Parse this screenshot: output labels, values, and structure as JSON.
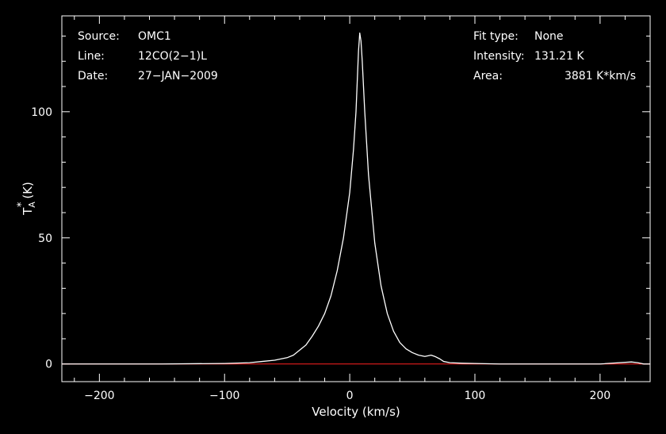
{
  "chart_data": {
    "type": "line",
    "title": "",
    "xlabel": "Velocity (km/s)",
    "ylabel": "T*A (K)",
    "ylabel_parts": {
      "main": "T",
      "sup": "*",
      "sub": "A",
      "unit": "(K)"
    },
    "xlim": [
      -230,
      240
    ],
    "ylim": [
      -7,
      138
    ],
    "x_ticks": [
      -200,
      -100,
      0,
      100,
      200
    ],
    "x_tick_labels": [
      "−200",
      "−100",
      "0",
      "100",
      "200"
    ],
    "y_ticks": [
      0,
      50,
      100
    ],
    "y_tick_labels": [
      "0",
      "50",
      "100"
    ],
    "grid": false,
    "baseline": {
      "y": 0,
      "color": "#ff2020"
    },
    "series": [
      {
        "color": "#ffffff",
        "x": [
          -230,
          -200,
          -150,
          -100,
          -80,
          -70,
          -60,
          -50,
          -45,
          -40,
          -35,
          -30,
          -25,
          -20,
          -15,
          -10,
          -5,
          0,
          3,
          5,
          6,
          7,
          8,
          9,
          10,
          12,
          15,
          20,
          25,
          30,
          35,
          40,
          45,
          50,
          55,
          60,
          65,
          68,
          72,
          75,
          80,
          90,
          100,
          120,
          150,
          200,
          225,
          230,
          235,
          240
        ],
        "y": [
          0,
          0,
          0,
          0.2,
          0.5,
          1,
          1.5,
          2.5,
          3.5,
          5.5,
          7.5,
          11,
          15,
          20,
          27,
          37,
          50,
          68,
          85,
          100,
          112,
          124,
          131.21,
          128,
          120,
          100,
          75,
          48,
          31,
          20,
          13,
          8.5,
          6,
          4.5,
          3.5,
          3,
          3.5,
          3,
          2,
          1,
          0.5,
          0.3,
          0.2,
          0,
          0,
          0,
          0.8,
          0.5,
          0,
          0
        ]
      }
    ]
  },
  "info_left": [
    {
      "label": "Source:",
      "value": "OMC1"
    },
    {
      "label": "Line:",
      "value": "12CO(2−1)L"
    },
    {
      "label": "Date:",
      "value": "27−JAN−2009"
    }
  ],
  "info_right": [
    {
      "label": "Fit type:",
      "value": "None"
    },
    {
      "label": "Intensity:",
      "value": "131.21 K"
    },
    {
      "label": "Area:",
      "value": "3881 K*km/s"
    }
  ]
}
